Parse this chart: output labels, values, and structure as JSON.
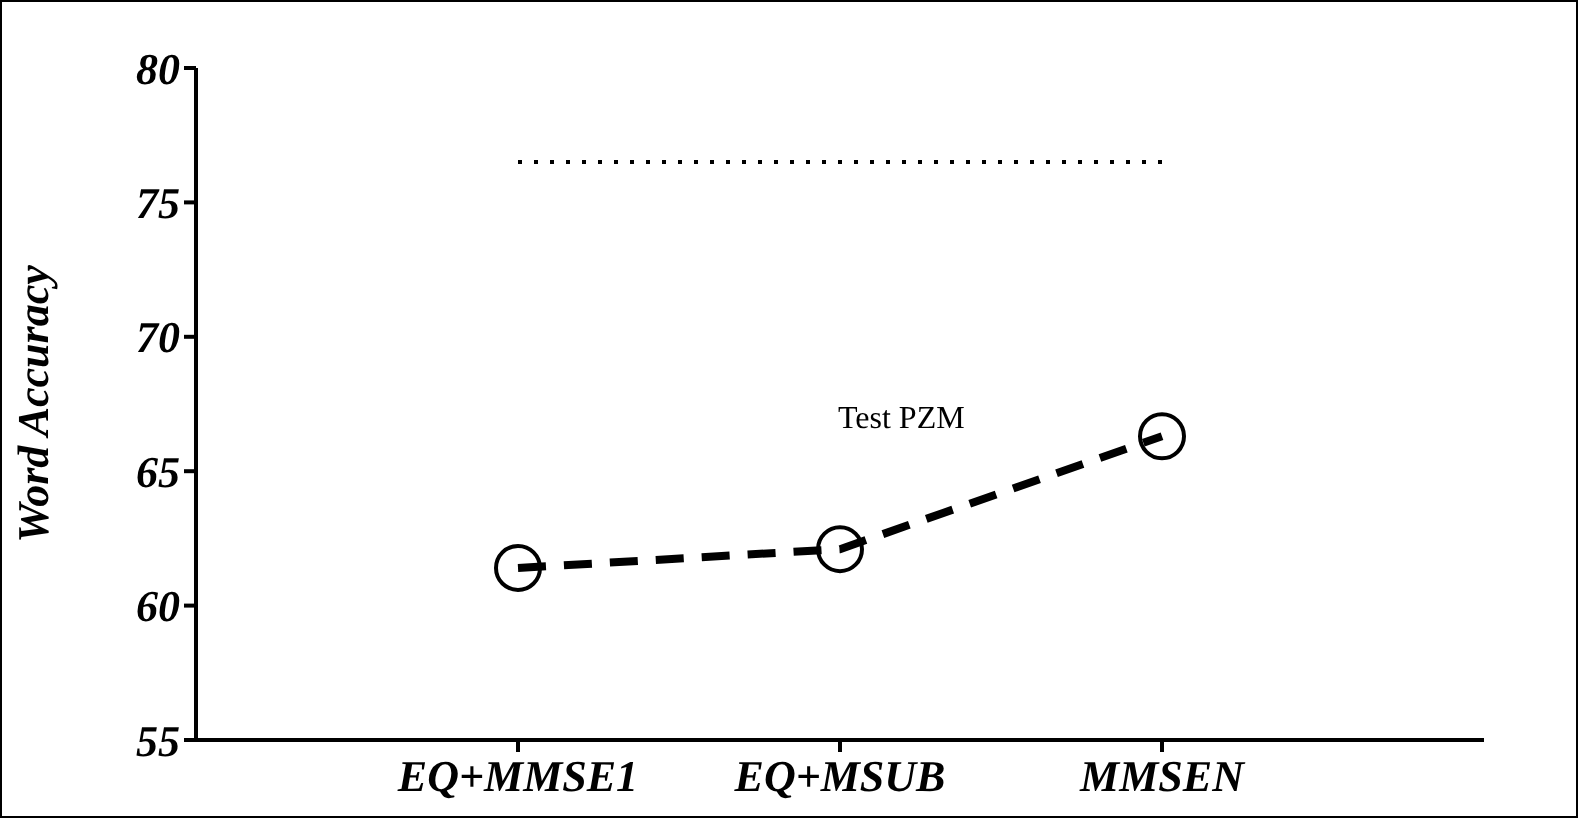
{
  "chart_data": {
    "type": "line",
    "ylabel": "Word Accuracy",
    "categories": [
      "EQ+MMSE1",
      "EQ+MSUB",
      "MMSEN"
    ],
    "ylim": [
      55,
      80
    ],
    "yticks": [
      55,
      60,
      65,
      70,
      75,
      80
    ],
    "grid": false,
    "legend": false,
    "annotations": [
      "Test PZM"
    ],
    "series": [
      {
        "color": "#000000",
        "values": [
          61.4,
          62.1,
          66.3
        ],
        "marker": "circle",
        "line_style": "dashed"
      },
      {
        "color": "#000000",
        "values": [
          76.5,
          76.5,
          76.5
        ],
        "marker": "none",
        "line_style": "dotted"
      }
    ]
  }
}
